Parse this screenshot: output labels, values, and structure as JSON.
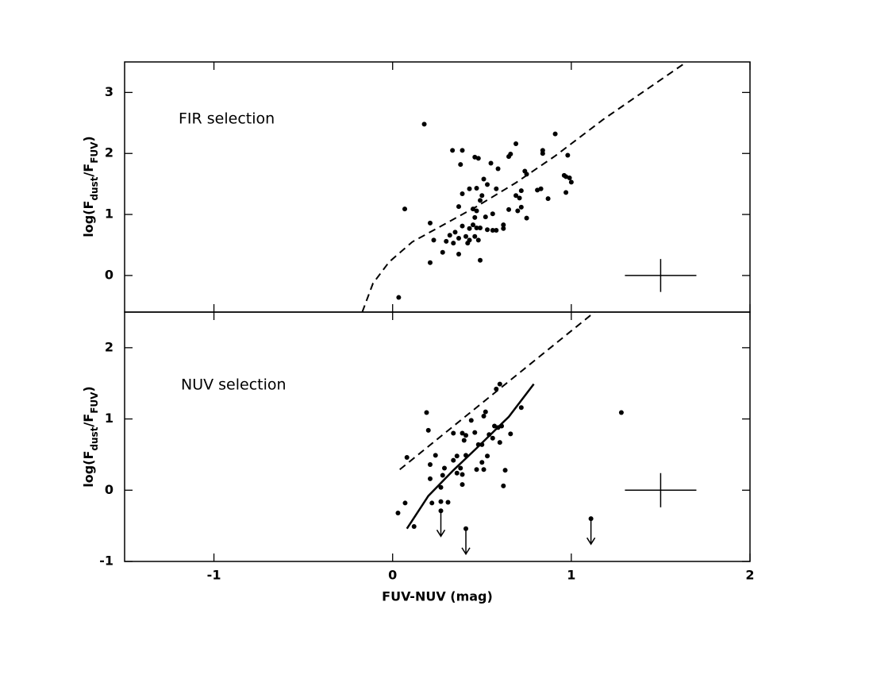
{
  "chart_data": [
    {
      "type": "scatter",
      "annotation": "FIR selection",
      "ylabel": [
        "log(F",
        "dust",
        "/F",
        "FUV",
        ")"
      ],
      "xlim": [
        -1.5,
        2
      ],
      "ylim": [
        -0.6,
        3.5
      ],
      "yticks": [
        0,
        1,
        2,
        3
      ],
      "series": [
        {
          "style": "dot",
          "color": "#000000",
          "x": [
            0.177,
            0.068,
            0.034,
            0.21,
            0.23,
            0.21,
            0.335,
            0.39,
            0.38,
            0.46,
            0.48,
            0.55,
            0.59,
            0.51,
            0.53,
            0.47,
            0.43,
            0.39,
            0.58,
            0.37,
            0.45,
            0.47,
            0.49,
            0.5,
            0.56,
            0.46,
            0.52,
            0.39,
            0.43,
            0.45,
            0.47,
            0.49,
            0.53,
            0.58,
            0.62,
            0.62,
            0.65,
            0.7,
            0.72,
            0.75,
            0.71,
            0.69,
            0.72,
            0.74,
            0.75,
            0.65,
            0.66,
            0.69,
            0.84,
            0.84,
            0.91,
            0.81,
            0.83,
            0.87,
            0.96,
            0.97,
            0.98,
            0.99,
            1.0,
            0.97,
            0.37,
            0.35,
            0.32,
            0.3,
            0.34,
            0.28,
            0.37,
            0.41,
            0.43,
            0.42,
            0.46,
            0.48,
            0.49,
            0.56
          ],
          "values": [
            2.48,
            1.09,
            -0.36,
            0.86,
            0.58,
            0.21,
            2.05,
            2.05,
            1.82,
            1.94,
            1.92,
            1.84,
            1.75,
            1.58,
            1.49,
            1.43,
            1.42,
            1.34,
            1.42,
            1.13,
            1.09,
            1.06,
            1.23,
            1.31,
            1.01,
            0.95,
            0.96,
            0.81,
            0.77,
            0.83,
            0.78,
            0.78,
            0.75,
            0.74,
            0.83,
            0.77,
            1.08,
            1.06,
            1.12,
            0.94,
            1.27,
            1.31,
            1.39,
            1.71,
            1.66,
            1.95,
            1.99,
            2.16,
            2.05,
            2.0,
            2.32,
            1.4,
            1.42,
            1.26,
            1.64,
            1.62,
            1.97,
            1.6,
            1.53,
            1.36,
            0.61,
            0.71,
            0.66,
            0.56,
            0.53,
            0.38,
            0.35,
            0.64,
            0.58,
            0.53,
            0.64,
            0.58,
            0.25,
            0.74
          ]
        },
        {
          "style": "dashed",
          "color": "#000000",
          "x": [
            -0.17,
            -0.11,
            -0.02,
            0.11,
            0.29,
            0.47,
            0.69,
            0.91,
            1.18,
            1.64
          ],
          "values": [
            -0.6,
            -0.13,
            0.22,
            0.55,
            0.84,
            1.13,
            1.52,
            1.96,
            2.56,
            3.49
          ]
        },
        {
          "style": "errorbar",
          "color": "#000000",
          "x": [
            1.5
          ],
          "values": [
            0
          ],
          "xerr": [
            0.2
          ],
          "yerr": [
            0.27
          ]
        }
      ]
    },
    {
      "type": "scatter",
      "annotation": "NUV selection",
      "ylabel": [
        "log(F",
        "dust",
        "/F",
        "FUV",
        ")"
      ],
      "xlabel": "FUV-NUV (mag)",
      "xlim": [
        -1.5,
        2
      ],
      "ylim": [
        -1,
        2.5
      ],
      "xticks": [
        -1,
        0,
        1,
        2
      ],
      "yticks": [
        -1,
        0,
        1,
        2
      ],
      "series": [
        {
          "style": "dot",
          "color": "#000000",
          "x": [
            0.03,
            0.07,
            0.08,
            0.12,
            0.19,
            0.2,
            0.21,
            0.24,
            0.21,
            0.22,
            0.27,
            0.31,
            0.27,
            0.28,
            0.29,
            0.34,
            0.36,
            0.34,
            0.39,
            0.41,
            0.4,
            0.41,
            0.38,
            0.36,
            0.39,
            0.39,
            0.44,
            0.46,
            0.48,
            0.5,
            0.51,
            0.52,
            0.54,
            0.56,
            0.57,
            0.59,
            0.61,
            0.6,
            0.53,
            0.5,
            0.47,
            0.51,
            0.58,
            0.6,
            0.63,
            0.62,
            0.66,
            0.72,
            1.28
          ],
          "values": [
            -0.32,
            -0.18,
            0.46,
            -0.51,
            1.09,
            0.84,
            0.36,
            0.49,
            0.16,
            -0.18,
            -0.16,
            -0.17,
            0.04,
            0.21,
            0.31,
            0.42,
            0.48,
            0.8,
            0.8,
            0.77,
            0.7,
            0.49,
            0.31,
            0.24,
            0.22,
            0.08,
            0.98,
            0.81,
            0.64,
            0.64,
            1.04,
            1.1,
            0.78,
            0.73,
            0.9,
            0.88,
            0.9,
            0.67,
            0.48,
            0.39,
            0.29,
            0.29,
            1.42,
            1.49,
            0.28,
            0.06,
            0.79,
            1.16,
            1.09
          ]
        },
        {
          "style": "upper-limit",
          "color": "#000000",
          "x": [
            0.27,
            0.41,
            1.11
          ],
          "values": [
            -0.29,
            -0.54,
            -0.4
          ]
        },
        {
          "style": "dashed",
          "color": "#000000",
          "x": [
            0.04,
            1.13
          ],
          "values": [
            0.29,
            2.5
          ]
        },
        {
          "style": "solid",
          "color": "#000000",
          "x": [
            0.08,
            0.2,
            0.34,
            0.47,
            0.65,
            0.79
          ],
          "values": [
            -0.54,
            -0.08,
            0.28,
            0.59,
            1.03,
            1.49
          ]
        },
        {
          "style": "errorbar",
          "color": "#000000",
          "x": [
            1.5
          ],
          "values": [
            0
          ],
          "xerr": [
            0.2
          ],
          "yerr": [
            0.24
          ]
        }
      ]
    }
  ]
}
